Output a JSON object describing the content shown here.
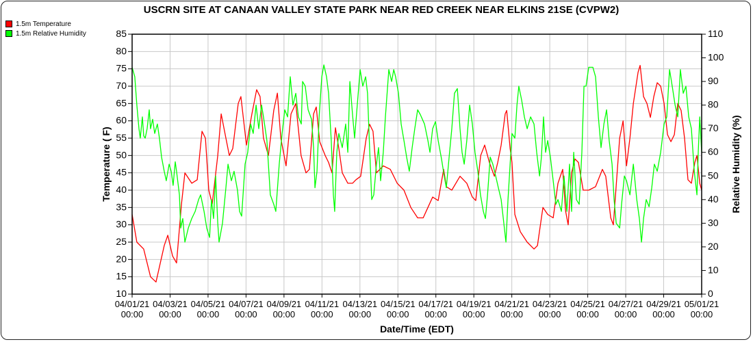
{
  "chart_data": {
    "type": "line",
    "title": "USCRN SITE AT CANAAN VALLEY STATE PARK NEAR RED CREEK NEAR ELKINS 21SE (CVPW2)",
    "xlabel": "Date/Time (EDT)",
    "ylabel": "Temperature ( F)",
    "y2label": "Relative Humidity (%)",
    "xlim_days": [
      0,
      30
    ],
    "ylim": [
      10,
      85
    ],
    "y2lim": [
      0,
      110
    ],
    "yticks": [
      "10",
      "15",
      "20",
      "25",
      "30",
      "35",
      "40",
      "45",
      "50",
      "55",
      "60",
      "65",
      "70",
      "75",
      "80",
      "85"
    ],
    "y2ticks": [
      "0",
      "10",
      "20",
      "30",
      "40",
      "50",
      "60",
      "70",
      "80",
      "90",
      "100",
      "110"
    ],
    "xticks": [
      {
        "date": "04/01/21",
        "time": "00:00"
      },
      {
        "date": "04/03/21",
        "time": "00:00"
      },
      {
        "date": "04/05/21",
        "time": "00:00"
      },
      {
        "date": "04/07/21",
        "time": "00:00"
      },
      {
        "date": "04/09/21",
        "time": "00:00"
      },
      {
        "date": "04/11/21",
        "time": "00:00"
      },
      {
        "date": "04/13/21",
        "time": "00:00"
      },
      {
        "date": "04/15/21",
        "time": "00:00"
      },
      {
        "date": "04/17/21",
        "time": "00:00"
      },
      {
        "date": "04/19/21",
        "time": "00:00"
      },
      {
        "date": "04/21/21",
        "time": "00:00"
      },
      {
        "date": "04/23/21",
        "time": "00:00"
      },
      {
        "date": "04/25/21",
        "time": "00:00"
      },
      {
        "date": "04/27/21",
        "time": "00:00"
      },
      {
        "date": "04/29/21",
        "time": "00:00"
      },
      {
        "date": "05/01/21",
        "time": "00:00"
      }
    ],
    "grid": true,
    "legend_position": "top-left",
    "series": [
      {
        "name": "1.5m Temperature",
        "color": "#ff0000",
        "axis": "left",
        "t": [
          0,
          0.25,
          0.61,
          0.97,
          1.26,
          1.69,
          1.88,
          2.13,
          2.34,
          2.6,
          2.78,
          3.14,
          3.43,
          3.68,
          3.86,
          4.04,
          4.22,
          4.51,
          4.69,
          4.94,
          5.12,
          5.3,
          5.59,
          5.73,
          6.02,
          6.31,
          6.56,
          6.74,
          6.92,
          7.18,
          7.46,
          7.65,
          7.83,
          8.11,
          8.37,
          8.62,
          8.9,
          9.16,
          9.34,
          9.56,
          9.7,
          9.88,
          10.17,
          10.35,
          10.53,
          10.71,
          10.89,
          11.07,
          11.36,
          11.61,
          11.79,
          12.04,
          12.33,
          12.51,
          12.69,
          12.87,
          13.23,
          13.6,
          13.96,
          14.32,
          14.68,
          15.04,
          15.33,
          15.58,
          15.83,
          16.12,
          16.41,
          16.55,
          16.84,
          17.27,
          17.63,
          17.92,
          18.1,
          18.36,
          18.57,
          18.82,
          19.08,
          19.26,
          19.44,
          19.65,
          19.73,
          19.91,
          20.01,
          20.16,
          20.45,
          20.81,
          21.17,
          21.35,
          21.64,
          21.89,
          22.18,
          22.43,
          22.68,
          22.83,
          22.97,
          23.15,
          23.33,
          23.51,
          23.76,
          24.05,
          24.41,
          24.77,
          24.95,
          25.21,
          25.35,
          25.68,
          25.86,
          26.04,
          26.22,
          26.4,
          26.65,
          26.76,
          26.94,
          27.12,
          27.3,
          27.48,
          27.66,
          27.84,
          28.02,
          28.2,
          28.38,
          28.56,
          28.74,
          28.92,
          29.1,
          29.28,
          29.46,
          29.64,
          29.75,
          29.9,
          30
        ],
        "values": [
          33,
          25,
          23,
          15,
          13.5,
          24,
          27,
          21,
          19,
          36,
          45,
          42,
          43,
          57,
          55,
          40,
          36,
          50,
          62,
          55,
          50,
          52,
          65,
          67,
          53,
          62,
          69,
          67,
          55,
          50,
          63,
          68,
          55,
          47,
          62,
          65,
          50,
          45,
          46,
          62,
          64,
          54,
          50,
          48,
          45,
          58,
          52,
          45,
          42,
          42,
          43,
          44,
          55,
          59,
          57,
          45,
          47,
          46,
          42,
          40,
          35,
          32,
          32,
          35,
          38,
          37,
          46,
          41,
          40,
          44,
          42,
          38,
          37,
          50,
          53,
          48,
          44,
          48,
          53,
          62,
          63,
          52,
          48,
          33,
          28,
          25,
          23,
          24,
          35,
          33,
          32,
          42,
          46,
          34,
          30,
          45,
          49,
          48,
          40,
          40,
          41,
          46,
          44,
          32,
          30,
          55,
          60,
          47,
          55,
          65,
          74,
          76,
          67,
          65,
          61,
          67,
          71,
          70,
          65,
          56,
          54,
          56,
          65,
          63,
          55,
          43,
          42,
          48,
          50,
          42,
          40
        ]
      },
      {
        "name": "1.5m Relative Humidity",
        "color": "#00ff00",
        "axis": "right",
        "t": [
          0,
          0.14,
          0.25,
          0.36,
          0.43,
          0.54,
          0.61,
          0.69,
          0.79,
          0.9,
          0.97,
          1.08,
          1.19,
          1.33,
          1.44,
          1.55,
          1.69,
          1.8,
          1.95,
          2.06,
          2.16,
          2.27,
          2.34,
          2.49,
          2.56,
          2.67,
          2.78,
          2.96,
          3.14,
          3.32,
          3.5,
          3.61,
          3.79,
          3.93,
          4.08,
          4.18,
          4.29,
          4.4,
          4.51,
          4.58,
          4.76,
          4.94,
          5.05,
          5.23,
          5.37,
          5.55,
          5.66,
          5.77,
          5.95,
          6.09,
          6.24,
          6.38,
          6.53,
          6.67,
          6.82,
          6.92,
          7.1,
          7.28,
          7.46,
          7.57,
          7.75,
          7.9,
          8.04,
          8.19,
          8.33,
          8.47,
          8.62,
          8.76,
          8.91,
          8.98,
          9.12,
          9.27,
          9.45,
          9.56,
          9.63,
          9.74,
          9.85,
          9.99,
          10.1,
          10.24,
          10.35,
          10.49,
          10.6,
          10.67,
          10.78,
          10.89,
          11.07,
          11.25,
          11.36,
          11.47,
          11.61,
          11.72,
          11.86,
          12.01,
          12.15,
          12.3,
          12.4,
          12.51,
          12.62,
          12.73,
          12.87,
          12.98,
          13.09,
          13.23,
          13.34,
          13.52,
          13.67,
          13.78,
          13.88,
          14.03,
          14.17,
          14.32,
          14.46,
          14.6,
          14.75,
          14.89,
          15.04,
          15.18,
          15.4,
          15.58,
          15.69,
          15.83,
          15.98,
          16.12,
          16.3,
          16.44,
          16.55,
          16.7,
          16.84,
          16.98,
          17.13,
          17.27,
          17.38,
          17.49,
          17.63,
          17.78,
          17.92,
          18.06,
          18.21,
          18.35,
          18.5,
          18.61,
          18.72,
          18.86,
          19.0,
          19.15,
          19.29,
          19.44,
          19.58,
          19.69,
          19.8,
          19.91,
          20.01,
          20.16,
          20.27,
          20.37,
          20.52,
          20.66,
          20.81,
          20.99,
          21.17,
          21.31,
          21.46,
          21.56,
          21.67,
          21.78,
          21.89,
          22.03,
          22.18,
          22.32,
          22.43,
          22.61,
          22.75,
          22.9,
          23.04,
          23.15,
          23.26,
          23.4,
          23.55,
          23.69,
          23.8,
          23.91,
          24.05,
          24.27,
          24.41,
          24.56,
          24.7,
          24.85,
          24.99,
          25.13,
          25.28,
          25.39,
          25.5,
          25.68,
          25.78,
          25.93,
          26.04,
          26.22,
          26.4,
          26.58,
          26.72,
          26.83,
          26.94,
          27.08,
          27.23,
          27.37,
          27.51,
          27.66,
          27.84,
          28.02,
          28.16,
          28.31,
          28.45,
          28.6,
          28.74,
          28.88,
          29.03,
          29.17,
          29.32,
          29.46,
          29.61,
          29.75,
          29.82,
          29.9,
          30
        ],
        "values": [
          96,
          92,
          80,
          70,
          66,
          75,
          67,
          66,
          70,
          78,
          70,
          74,
          68,
          72,
          66,
          58,
          52,
          48,
          55,
          52,
          46,
          56,
          52,
          42,
          28,
          32,
          22,
          28,
          32,
          35,
          40,
          42,
          35,
          28,
          24,
          40,
          32,
          50,
          30,
          22,
          30,
          45,
          55,
          48,
          52,
          44,
          35,
          33,
          55,
          60,
          72,
          68,
          80,
          70,
          80,
          75,
          65,
          42,
          38,
          35,
          55,
          68,
          78,
          75,
          92,
          80,
          85,
          75,
          72,
          90,
          88,
          78,
          74,
          62,
          45,
          52,
          75,
          92,
          97,
          92,
          85,
          65,
          42,
          35,
          60,
          68,
          62,
          72,
          60,
          90,
          76,
          66,
          80,
          95,
          88,
          92,
          85,
          62,
          40,
          42,
          55,
          62,
          48,
          60,
          75,
          95,
          90,
          95,
          92,
          85,
          72,
          65,
          58,
          52,
          62,
          70,
          78,
          76,
          72,
          65,
          60,
          70,
          73,
          65,
          57,
          50,
          45,
          58,
          70,
          85,
          87,
          70,
          60,
          55,
          65,
          80,
          72,
          60,
          52,
          42,
          35,
          32,
          42,
          58,
          55,
          50,
          45,
          40,
          30,
          22,
          40,
          55,
          68,
          66,
          80,
          88,
          82,
          75,
          70,
          75,
          72,
          60,
          50,
          58,
          75,
          60,
          65,
          58,
          48,
          38,
          40,
          35,
          50,
          35,
          55,
          35,
          60,
          40,
          38,
          60,
          88,
          88,
          96,
          96,
          92,
          75,
          62,
          72,
          78,
          65,
          55,
          40,
          30,
          28,
          38,
          50,
          48,
          42,
          55,
          40,
          32,
          22,
          32,
          40,
          37,
          45,
          55,
          52,
          60,
          72,
          75,
          95,
          88,
          80,
          75,
          95,
          85,
          88,
          75,
          70,
          52,
          42,
          60,
          75,
          60
        ]
      }
    ]
  }
}
